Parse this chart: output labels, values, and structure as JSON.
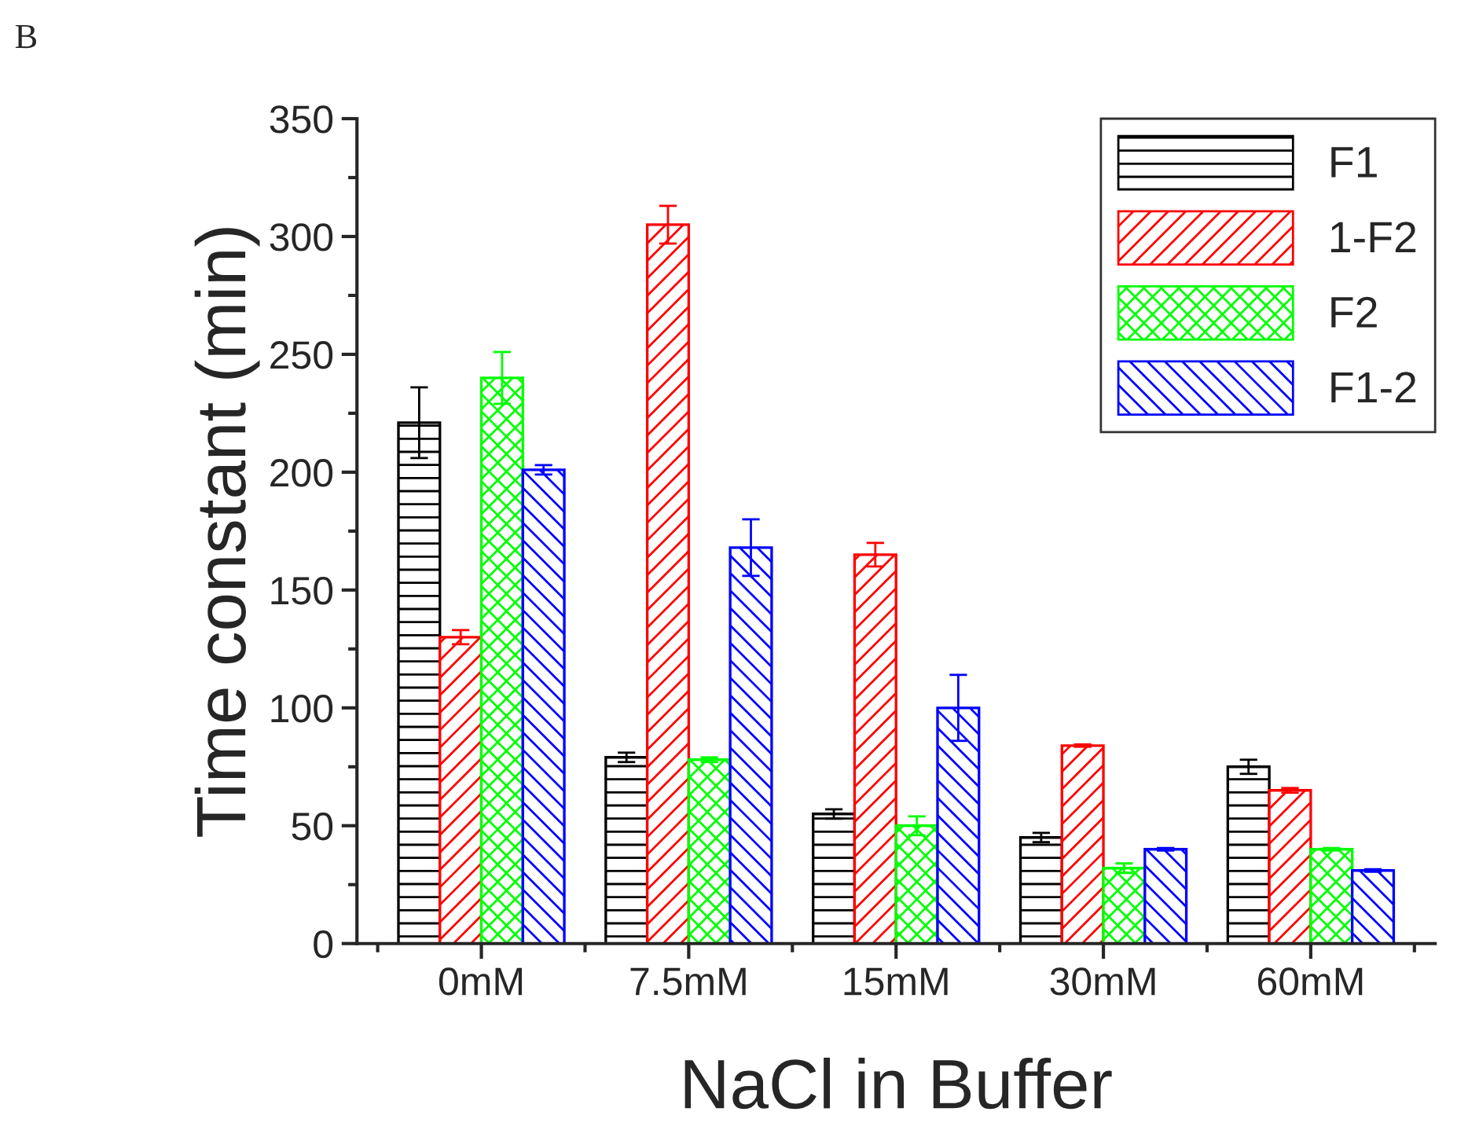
{
  "chart_data": {
    "type": "bar",
    "xlabel": "NaCl in Buffer",
    "ylabel": "Time constant (min)",
    "annotations": [
      "B"
    ],
    "categories": [
      "0mM",
      "7.5mM",
      "15mM",
      "30mM",
      "60mM"
    ],
    "series": [
      {
        "name": "F1",
        "color": "#000000",
        "values": [
          221,
          79,
          55,
          45,
          75
        ],
        "errors": [
          15,
          2,
          2,
          2,
          3
        ]
      },
      {
        "name": "1-F2",
        "color": "#ff0000",
        "values": [
          130,
          305,
          165,
          84,
          65
        ],
        "errors": [
          3,
          8,
          5,
          0.5,
          1
        ]
      },
      {
        "name": "F2",
        "color": "#00ff00",
        "values": [
          240,
          78,
          50,
          32,
          40
        ],
        "errors": [
          11,
          1,
          4,
          2,
          0.5
        ]
      },
      {
        "name": "F1-2",
        "color": "#0000ff",
        "values": [
          201,
          168,
          100,
          40,
          31
        ],
        "errors": [
          2,
          12,
          14,
          0.5,
          0.5
        ]
      }
    ],
    "ylim": [
      0,
      350
    ],
    "yticks": [
      0,
      50,
      100,
      150,
      200,
      250,
      300,
      350
    ],
    "grid": false,
    "legend": "top right"
  }
}
